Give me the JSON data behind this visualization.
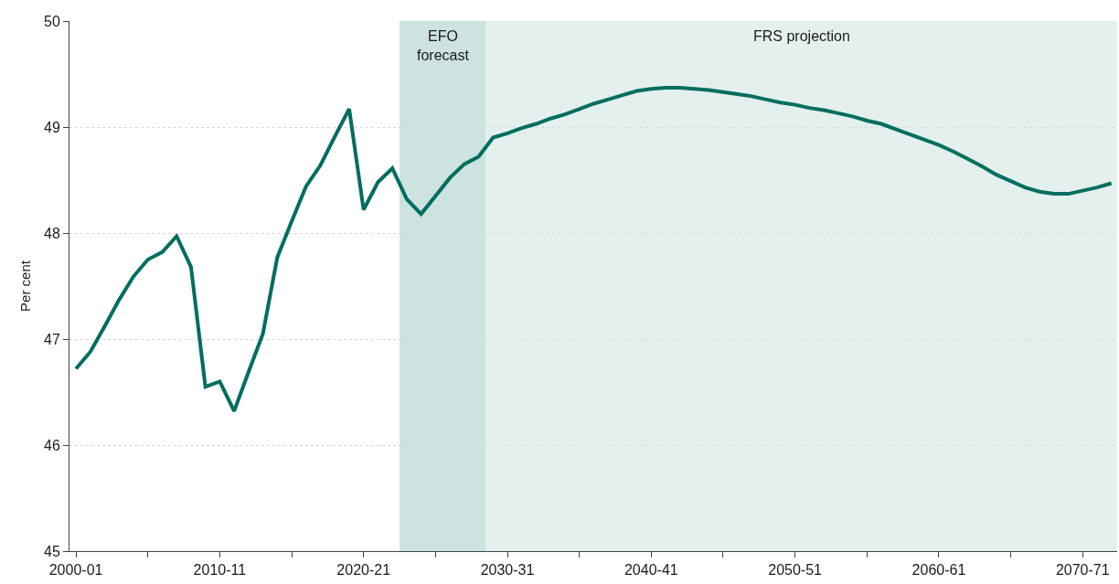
{
  "chart_data": {
    "type": "line",
    "ylabel": "Per cent",
    "categories": [
      "2000-01",
      null,
      null,
      null,
      null,
      null,
      null,
      null,
      null,
      null,
      "2010-11",
      null,
      null,
      null,
      null,
      null,
      null,
      null,
      null,
      null,
      "2020-21",
      null,
      null,
      null,
      null,
      null,
      null,
      null,
      null,
      null,
      "2030-31",
      null,
      null,
      null,
      null,
      null,
      null,
      null,
      null,
      null,
      "2040-41",
      null,
      null,
      null,
      null,
      null,
      null,
      null,
      null,
      null,
      "2050-51",
      null,
      null,
      null,
      null,
      null,
      null,
      null,
      null,
      null,
      "2060-61",
      null,
      null,
      null,
      null,
      null,
      null,
      null,
      null,
      null,
      "2070-71",
      null,
      null
    ],
    "series": [
      {
        "color": "#006e5f",
        "values": [
          46.72,
          46.88,
          47.12,
          47.37,
          47.59,
          47.75,
          47.82,
          47.97,
          47.68,
          46.55,
          46.6,
          46.32,
          46.69,
          47.05,
          47.77,
          48.11,
          48.44,
          48.64,
          48.91,
          49.17,
          48.22,
          48.48,
          48.61,
          48.32,
          48.18,
          48.35,
          48.52,
          48.65,
          48.72,
          48.9,
          48.94,
          48.99,
          49.03,
          49.08,
          49.12,
          49.17,
          49.22,
          49.26,
          49.3,
          49.34,
          49.36,
          49.37,
          49.37,
          49.36,
          49.35,
          49.33,
          49.31,
          49.29,
          49.26,
          49.23,
          49.21,
          49.18,
          49.16,
          49.13,
          49.1,
          49.06,
          49.03,
          48.98,
          48.93,
          48.88,
          48.83,
          48.77,
          48.7,
          48.63,
          48.55,
          48.49,
          48.43,
          48.39,
          48.37,
          48.37,
          48.4,
          48.43,
          48.47
        ]
      }
    ],
    "ylim": [
      45,
      50
    ],
    "yticks": [
      45,
      46,
      47,
      48,
      49,
      50
    ],
    "grid": "y",
    "marker": "none",
    "line_style": "solid",
    "annotations": [
      "EFO\nforecast",
      "FRS projection"
    ]
  }
}
